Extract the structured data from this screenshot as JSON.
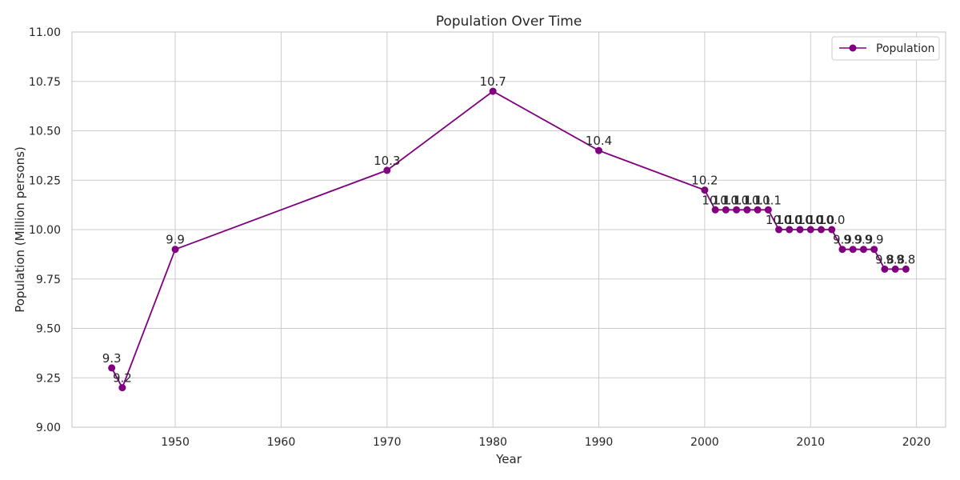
{
  "chart_data": {
    "type": "line",
    "title": "Population Over Time",
    "xlabel": "Year",
    "ylabel": "Population (Million persons)",
    "xlim": [
      1940.25,
      1922.75
    ],
    "ylim": [
      9.0,
      11.0
    ],
    "x_ticks": [
      1950,
      1960,
      1970,
      1980,
      1990,
      2000,
      2010,
      2020
    ],
    "y_ticks": [
      9.0,
      9.25,
      9.5,
      9.75,
      10.0,
      10.25,
      10.5,
      10.75,
      11.0
    ],
    "y_tick_labels": [
      "9.00",
      "9.25",
      "9.50",
      "9.75",
      "10.00",
      "10.25",
      "10.50",
      "10.75",
      "11.00"
    ],
    "grid": true,
    "legend": {
      "position": "top-right"
    },
    "series": [
      {
        "name": "Population",
        "color": "#800080",
        "x": [
          1944,
          1945,
          1950,
          1970,
          1980,
          1990,
          2000,
          2001,
          2002,
          2003,
          2004,
          2005,
          2006,
          2007,
          2008,
          2009,
          2010,
          2011,
          2012,
          2013,
          2014,
          2015,
          2016,
          2017,
          2018,
          2019
        ],
        "y": [
          9.3,
          9.2,
          9.9,
          10.3,
          10.7,
          10.4,
          10.2,
          10.1,
          10.1,
          10.1,
          10.1,
          10.1,
          10.1,
          10.0,
          10.0,
          10.0,
          10.0,
          10.0,
          10.0,
          9.9,
          9.9,
          9.9,
          9.9,
          9.8,
          9.8,
          9.8
        ],
        "labels": [
          "9.3",
          "9.2",
          "9.9",
          "10.3",
          "10.7",
          "10.4",
          "10.2",
          "10.1",
          "10.1",
          "10.1",
          "10.1",
          "10.1",
          "10.1",
          "10.0",
          "10.0",
          "10.0",
          "10.0",
          "10.0",
          "10.0",
          "9.9",
          "9.9",
          "9.9",
          "9.9",
          "9.8",
          "9.8",
          "9.8"
        ]
      }
    ]
  }
}
